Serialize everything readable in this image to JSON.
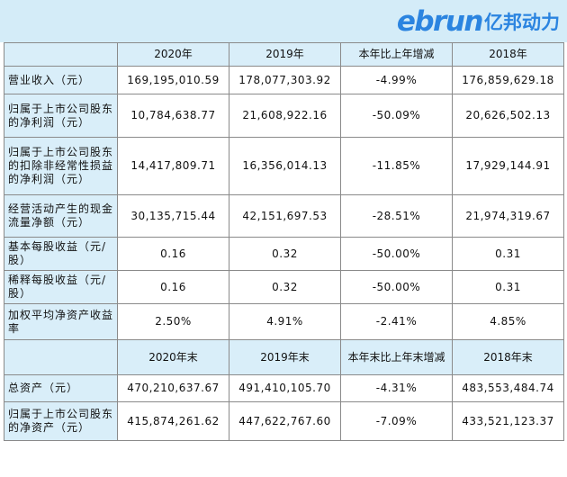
{
  "brand": {
    "mark": "ebrun",
    "name": "亿邦动力"
  },
  "header1": [
    "",
    "2020年",
    "2019年",
    "本年比上年增减",
    "2018年"
  ],
  "rows1": [
    {
      "label": "营业收入（元）",
      "values": [
        "169,195,010.59",
        "178,077,303.92",
        "-4.99%",
        "176,859,629.18"
      ]
    },
    {
      "label": "归属于上市公司股东的净利润（元）",
      "values": [
        "10,784,638.77",
        "21,608,922.16",
        "-50.09%",
        "20,626,502.13"
      ]
    },
    {
      "label": "归属于上市公司股东的扣除非经常性损益的净利润（元）",
      "values": [
        "14,417,809.71",
        "16,356,014.13",
        "-11.85%",
        "17,929,144.91"
      ]
    },
    {
      "label": "经营活动产生的现金流量净额（元）",
      "values": [
        "30,135,715.44",
        "42,151,697.53",
        "-28.51%",
        "21,974,319.67"
      ]
    },
    {
      "label": "基本每股收益（元/股）",
      "values": [
        "0.16",
        "0.32",
        "-50.00%",
        "0.31"
      ]
    },
    {
      "label": "稀释每股收益（元/股）",
      "values": [
        "0.16",
        "0.32",
        "-50.00%",
        "0.31"
      ]
    },
    {
      "label": "加权平均净资产收益率",
      "values": [
        "2.50%",
        "4.91%",
        "-2.41%",
        "4.85%"
      ]
    }
  ],
  "header2": [
    "",
    "2020年末",
    "2019年末",
    "本年末比上年末增减",
    "2018年末"
  ],
  "rows2": [
    {
      "label": "总资产（元）",
      "values": [
        "470,210,637.67",
        "491,410,105.70",
        "-4.31%",
        "483,553,484.74"
      ]
    },
    {
      "label": "归属于上市公司股东的净资产（元）",
      "values": [
        "415,874,261.62",
        "447,622,767.60",
        "-7.09%",
        "433,521,123.37"
      ]
    }
  ]
}
